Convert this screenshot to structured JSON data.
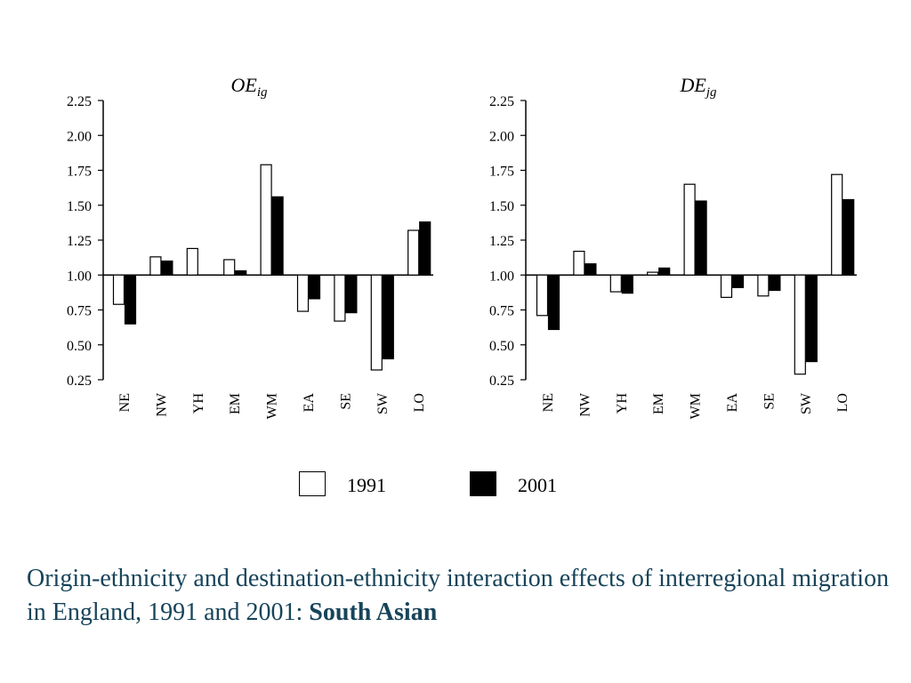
{
  "chart_data": [
    {
      "type": "bar",
      "title_main": "OE",
      "title_sub": "ig",
      "categories": [
        "NE",
        "NW",
        "YH",
        "EM",
        "WM",
        "EA",
        "SE",
        "SW",
        "LO"
      ],
      "baseline": 1.0,
      "ylim": [
        0.25,
        2.25
      ],
      "yticks": [
        "2.25",
        "2.00",
        "1.75",
        "1.50",
        "1.25",
        "1.00",
        "0.75",
        "0.50",
        "0.25"
      ],
      "series": [
        {
          "name": "1991",
          "values": [
            0.79,
            1.13,
            1.19,
            1.11,
            1.79,
            0.74,
            0.67,
            0.32,
            1.32
          ]
        },
        {
          "name": "2001",
          "values": [
            0.65,
            1.1,
            null,
            1.03,
            1.56,
            0.83,
            0.73,
            0.4,
            1.38
          ]
        }
      ]
    },
    {
      "type": "bar",
      "title_main": "DE",
      "title_sub": "jg",
      "categories": [
        "NE",
        "NW",
        "YH",
        "EM",
        "WM",
        "EA",
        "SE",
        "SW",
        "LO"
      ],
      "baseline": 1.0,
      "ylim": [
        0.25,
        2.25
      ],
      "yticks": [
        "2.25",
        "2.00",
        "1.75",
        "1.50",
        "1.25",
        "1.00",
        "0.75",
        "0.50",
        "0.25"
      ],
      "series": [
        {
          "name": "1991",
          "values": [
            0.71,
            1.17,
            0.88,
            1.02,
            1.65,
            0.84,
            0.85,
            0.29,
            1.72
          ]
        },
        {
          "name": "2001",
          "values": [
            0.61,
            1.08,
            0.87,
            1.05,
            1.53,
            0.91,
            0.89,
            0.38,
            1.54
          ]
        }
      ]
    }
  ],
  "legend": {
    "label_1991": "1991",
    "label_2001": "2001"
  },
  "caption": {
    "text": "Origin-ethnicity and destination-ethnicity interaction effects of interregional migration in England, 1991 and 2001: ",
    "emphasis": "South Asian"
  },
  "colors": {
    "bar_1991": "#ffffff",
    "bar_2001": "#000000",
    "caption": "#17445a"
  }
}
